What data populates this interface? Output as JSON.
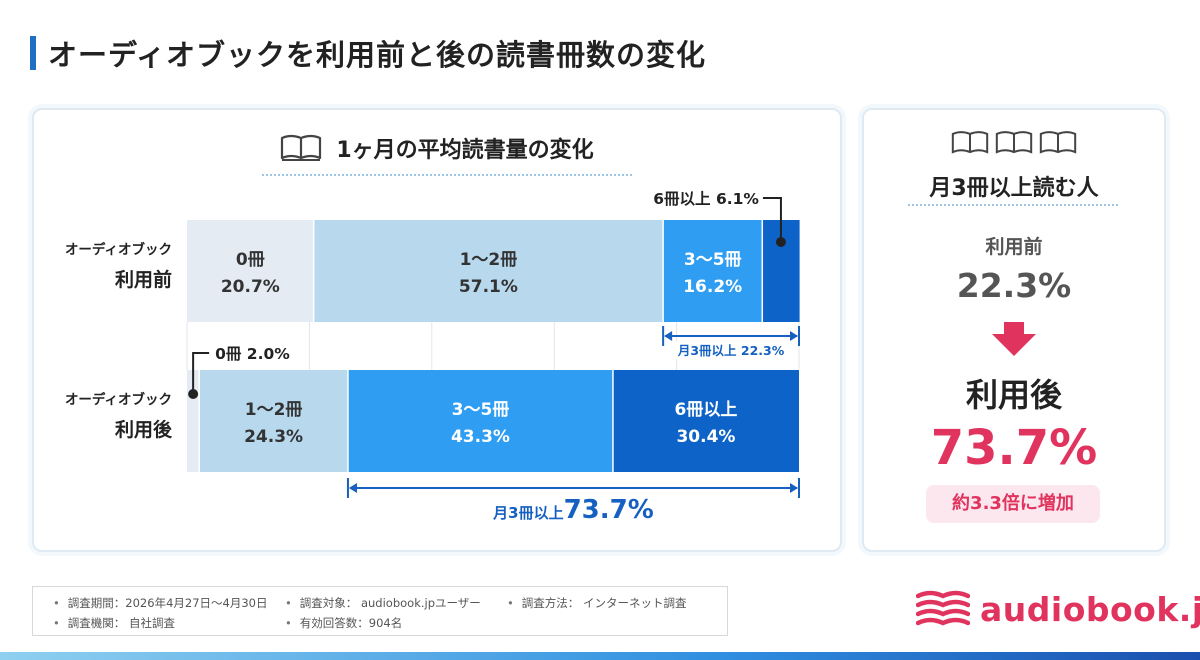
{
  "page_title": "オーディオブックを利用前と後の読書冊数の変化",
  "chart_data": {
    "type": "bar",
    "orientation": "horizontal",
    "stacked": "100%",
    "title": "1ヶ月の平均読書量の変化",
    "rows": [
      {
        "label_line1": "オーディオブック",
        "label_line2": "利用前",
        "segments": [
          {
            "label": "0冊",
            "value": 20.7,
            "value_label": "20.7%",
            "color": "#e4ebf3"
          },
          {
            "label": "1〜2冊",
            "value": 57.1,
            "value_label": "57.1%",
            "color": "#b7d8ed"
          },
          {
            "label": "3〜5冊",
            "value": 16.2,
            "value_label": "16.2%",
            "color": "#2e9df2"
          },
          {
            "label": "6冊以上",
            "value": 6.1,
            "value_label": "6.1%",
            "color": "#0e63c8"
          }
        ]
      },
      {
        "label_line1": "オーディオブック",
        "label_line2": "利用後",
        "segments": [
          {
            "label": "0冊",
            "value": 2.0,
            "value_label": "2.0%",
            "color": "#e4ebf3"
          },
          {
            "label": "1〜2冊",
            "value": 24.3,
            "value_label": "24.3%",
            "color": "#b7d8ed"
          },
          {
            "label": "3〜5冊",
            "value": 43.3,
            "value_label": "43.3%",
            "color": "#2e9df2"
          },
          {
            "label": "6冊以上",
            "value": 30.4,
            "value_label": "30.4%",
            "color": "#0e63c8"
          }
        ]
      }
    ],
    "callouts": {
      "before_6plus": "6冊以上  6.1%",
      "after_0": "0冊 2.0%"
    },
    "brackets": {
      "before": {
        "prefix": "月3冊以上 ",
        "value": "22.3%"
      },
      "after": {
        "prefix": "月3冊以上",
        "value": "73.7%"
      }
    },
    "xlim": [
      0,
      100
    ]
  },
  "side_panel": {
    "title": "月3冊以上読む人",
    "before_label": "利用前",
    "before_value": "22.3%",
    "after_label": "利用後",
    "after_value": "73.7%",
    "badge": "約3.3倍に増加"
  },
  "notes": {
    "period": "調査期間：2026年4月27日〜4月30日",
    "target": "調査対象： audiobook.jpユーザー",
    "method": "調査方法： インターネット調査",
    "org": "調査機関： 自社調査",
    "responses": "有効回答数：904名"
  },
  "logo": {
    "text": "audiobook.jp"
  },
  "colors": {
    "accent": "#1f6fc5",
    "pink": "#e0345f",
    "navy": "#0e63c8"
  },
  "icons": {
    "book": "open-book-icon",
    "arrow": "down-arrow-icon",
    "logo": "audiobook-wave-logo-icon"
  }
}
